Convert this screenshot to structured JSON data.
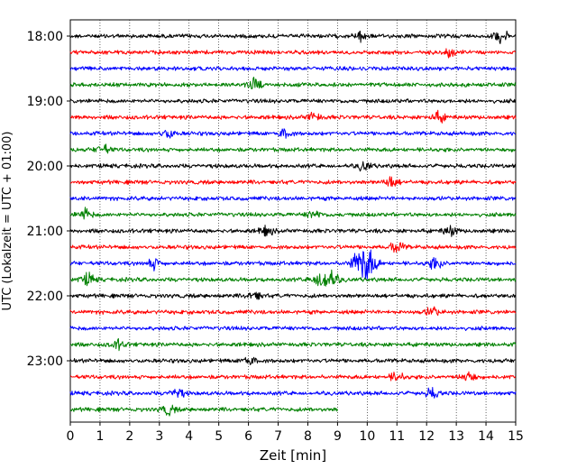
{
  "chart_data": {
    "type": "line",
    "title": "",
    "xlabel": "Zeit  [min]",
    "ylabel": "UTC (Lokalzeit = UTC + 01:00)",
    "xlim": [
      0,
      15
    ],
    "x_ticks": [
      "0",
      "1",
      "2",
      "3",
      "4",
      "5",
      "6",
      "7",
      "8",
      "9",
      "10",
      "11",
      "12",
      "13",
      "14",
      "15"
    ],
    "y_tick_labels": [
      "18:00",
      "19:00",
      "20:00",
      "21:00",
      "22:00",
      "23:00"
    ],
    "grid": "vertical dotted at each minute",
    "trace_interval_minutes": 15,
    "start_time": "18:00",
    "colors_cycle": [
      "#000000",
      "#ff0000",
      "#0000ff",
      "#008000"
    ],
    "traces": [
      {
        "start": "18:00",
        "color": "#000000",
        "end_min": 15,
        "events": [
          {
            "t": 9.8,
            "amp": 2.0
          },
          {
            "t": 14.5,
            "amp": 2.2
          }
        ]
      },
      {
        "start": "18:15",
        "color": "#ff0000",
        "end_min": 15,
        "events": [
          {
            "t": 12.8,
            "amp": 2.0
          }
        ]
      },
      {
        "start": "18:30",
        "color": "#0000ff",
        "end_min": 15,
        "events": []
      },
      {
        "start": "18:45",
        "color": "#008000",
        "end_min": 15,
        "events": [
          {
            "t": 6.2,
            "amp": 2.2
          }
        ]
      },
      {
        "start": "19:00",
        "color": "#000000",
        "end_min": 15,
        "events": []
      },
      {
        "start": "19:15",
        "color": "#ff0000",
        "end_min": 15,
        "events": [
          {
            "t": 8.2,
            "amp": 1.6
          },
          {
            "t": 12.4,
            "amp": 1.8
          }
        ]
      },
      {
        "start": "19:30",
        "color": "#0000ff",
        "end_min": 15,
        "events": [
          {
            "t": 3.3,
            "amp": 1.6
          },
          {
            "t": 7.2,
            "amp": 1.6
          }
        ]
      },
      {
        "start": "19:45",
        "color": "#008000",
        "end_min": 15,
        "events": [
          {
            "t": 1.1,
            "amp": 1.8
          }
        ]
      },
      {
        "start": "20:00",
        "color": "#000000",
        "end_min": 15,
        "events": [
          {
            "t": 9.9,
            "amp": 1.6
          }
        ]
      },
      {
        "start": "20:15",
        "color": "#ff0000",
        "end_min": 15,
        "events": [
          {
            "t": 10.8,
            "amp": 2.0
          }
        ]
      },
      {
        "start": "20:30",
        "color": "#0000ff",
        "end_min": 15,
        "events": []
      },
      {
        "start": "20:45",
        "color": "#008000",
        "end_min": 15,
        "events": [
          {
            "t": 0.5,
            "amp": 2.0
          },
          {
            "t": 8.2,
            "amp": 1.4
          }
        ]
      },
      {
        "start": "21:00",
        "color": "#000000",
        "end_min": 15,
        "events": [
          {
            "t": 6.6,
            "amp": 1.6
          },
          {
            "t": 12.8,
            "amp": 1.6
          }
        ]
      },
      {
        "start": "21:15",
        "color": "#ff0000",
        "end_min": 15,
        "events": [
          {
            "t": 11.0,
            "amp": 2.0
          }
        ]
      },
      {
        "start": "21:30",
        "color": "#0000ff",
        "end_min": 15,
        "events": [
          {
            "t": 2.8,
            "amp": 2.0
          },
          {
            "t": 9.9,
            "amp": 7.0
          },
          {
            "t": 12.3,
            "amp": 2.0
          }
        ]
      },
      {
        "start": "21:45",
        "color": "#008000",
        "end_min": 15,
        "events": [
          {
            "t": 0.6,
            "amp": 2.0
          },
          {
            "t": 8.6,
            "amp": 4.5
          }
        ]
      },
      {
        "start": "22:00",
        "color": "#000000",
        "end_min": 15,
        "events": [
          {
            "t": 6.2,
            "amp": 1.6
          }
        ]
      },
      {
        "start": "22:15",
        "color": "#ff0000",
        "end_min": 15,
        "events": [
          {
            "t": 12.2,
            "amp": 1.6
          }
        ]
      },
      {
        "start": "22:30",
        "color": "#0000ff",
        "end_min": 15,
        "events": []
      },
      {
        "start": "22:45",
        "color": "#008000",
        "end_min": 15,
        "events": [
          {
            "t": 1.6,
            "amp": 1.6
          }
        ]
      },
      {
        "start": "23:00",
        "color": "#000000",
        "end_min": 15,
        "events": [
          {
            "t": 6.0,
            "amp": 1.8
          }
        ]
      },
      {
        "start": "23:15",
        "color": "#ff0000",
        "end_min": 15,
        "events": [
          {
            "t": 11.0,
            "amp": 1.6
          },
          {
            "t": 13.4,
            "amp": 2.0
          }
        ]
      },
      {
        "start": "23:30",
        "color": "#0000ff",
        "end_min": 15,
        "events": [
          {
            "t": 3.6,
            "amp": 1.8
          },
          {
            "t": 12.2,
            "amp": 1.8
          }
        ]
      },
      {
        "start": "23:45",
        "color": "#008000",
        "end_min": 9.0,
        "events": [
          {
            "t": 3.3,
            "amp": 1.8
          }
        ]
      }
    ]
  }
}
